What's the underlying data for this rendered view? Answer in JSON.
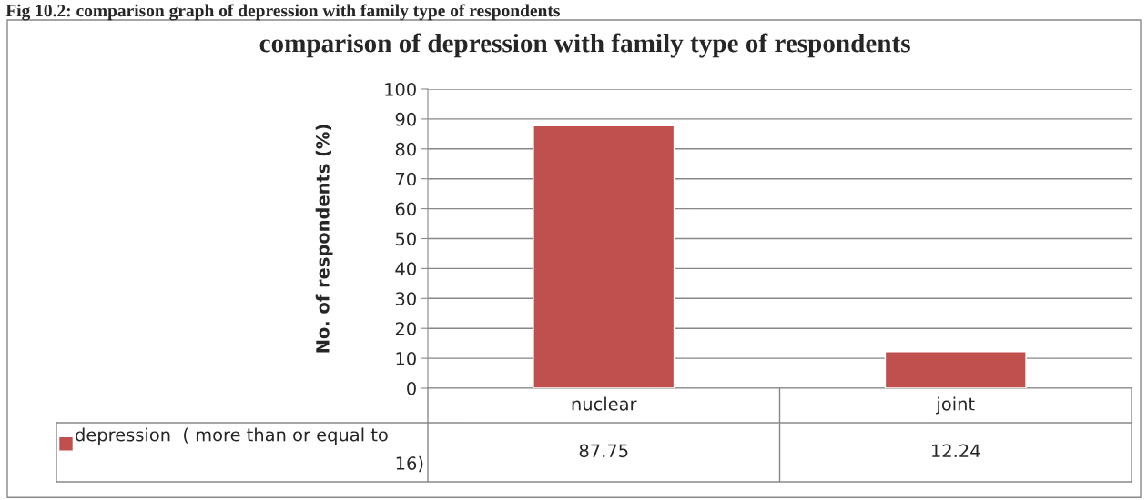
{
  "chart_data": {
    "type": "bar",
    "title": "comparison of depression with family type of respondents",
    "ylabel": "No. of respondents (%)",
    "annotations": [
      "Fig 10.2: comparison graph of depression with family type of respondents"
    ],
    "categories": [
      "nuclear",
      "joint"
    ],
    "series": [
      {
        "name": "depression  ( more than or equal to 16)",
        "color": "#c0504d",
        "values": [
          87.75,
          12.24
        ]
      }
    ],
    "ylim": [
      0,
      100
    ],
    "yticks": [
      0,
      10,
      20,
      30,
      40,
      50,
      60,
      70,
      80,
      90,
      100
    ],
    "grid": "y",
    "data_labels": true,
    "legend": "bottom left"
  }
}
